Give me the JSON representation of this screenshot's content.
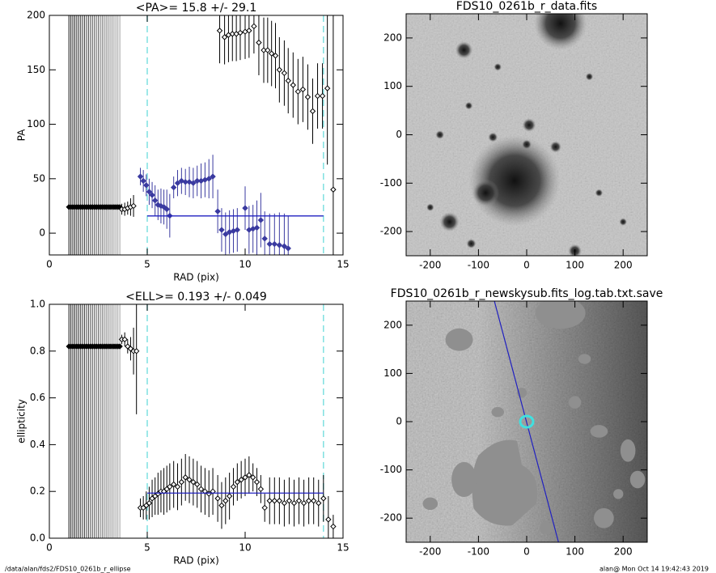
{
  "chart_data": [
    {
      "type": "scatter",
      "title": "<PA>=  15.8 +/-  29.1",
      "xlabel": "RAD (pix)",
      "ylabel": "PA",
      "xlim": [
        0,
        15
      ],
      "ylim": [
        -20,
        200
      ],
      "xticks": [
        0,
        5,
        10,
        15
      ],
      "yticks": [
        0,
        50,
        100,
        150,
        200
      ],
      "fit": {
        "value": 15.8,
        "color": "#2020c0"
      },
      "fit_range": [
        5,
        14
      ],
      "marker_color": "#7fe0e0",
      "series": [
        {
          "color": "#000000",
          "style": "band",
          "x": [
            1.0,
            1.1,
            1.2,
            1.3,
            1.4,
            1.5,
            1.6,
            1.7,
            1.8,
            1.9,
            2.0,
            2.1,
            2.2,
            2.3,
            2.4,
            2.5,
            2.6,
            2.7,
            2.8,
            2.9,
            3.0,
            3.1,
            3.2,
            3.3,
            3.4,
            3.5,
            3.6
          ],
          "values": [
            24,
            24,
            24,
            24,
            24,
            24,
            24,
            24,
            24,
            24,
            24,
            24,
            24,
            24,
            24,
            24,
            24,
            24,
            24,
            24,
            24,
            24,
            24,
            24,
            24,
            24,
            24
          ],
          "errors": [
            300,
            300,
            300,
            300,
            300,
            300,
            300,
            300,
            300,
            300,
            300,
            300,
            300,
            300,
            300,
            300,
            300,
            300,
            300,
            300,
            300,
            300,
            300,
            300,
            300,
            300,
            300
          ]
        },
        {
          "color": "#000000",
          "style": "open",
          "x": [
            3.7,
            3.85,
            4.0,
            4.15,
            4.3,
            8.7,
            8.95,
            9.15,
            9.35,
            9.55,
            9.75,
            10.0,
            10.2,
            10.45,
            10.7,
            10.95,
            11.15,
            11.35,
            11.55,
            11.75,
            12.0,
            12.2,
            12.45,
            12.7,
            12.95,
            13.2,
            13.45,
            13.7,
            13.95,
            14.2,
            14.5
          ],
          "values": [
            22,
            22,
            23,
            24,
            25,
            186,
            180,
            182,
            183,
            183,
            184,
            185,
            186,
            190,
            175,
            168,
            168,
            165,
            163,
            150,
            147,
            140,
            136,
            130,
            132,
            125,
            112,
            126,
            126,
            133,
            40
          ],
          "errors": [
            5,
            6,
            6,
            8,
            10,
            30,
            25,
            25,
            25,
            25,
            25,
            25,
            25,
            25,
            30,
            30,
            30,
            30,
            30,
            30,
            30,
            30,
            30,
            30,
            30,
            30,
            30,
            30,
            30,
            70,
            200
          ]
        },
        {
          "color": "#3a3aa0",
          "style": "filled",
          "x": [
            4.65,
            4.8,
            4.95,
            5.1,
            5.25,
            5.4,
            5.55,
            5.7,
            5.85,
            6.0,
            6.15,
            6.35,
            6.55,
            6.75,
            6.95,
            7.15,
            7.35,
            7.55,
            7.75,
            7.95,
            8.15,
            8.35,
            8.6,
            8.8,
            9.0,
            9.2,
            9.4,
            9.6,
            10.0,
            10.2,
            10.4,
            10.6,
            10.8,
            11.0,
            11.25,
            11.5,
            11.75,
            12.0,
            12.2
          ],
          "values": [
            52,
            48,
            44,
            38,
            35,
            30,
            26,
            25,
            24,
            22,
            16,
            42,
            46,
            48,
            47,
            47,
            46,
            48,
            48,
            49,
            50,
            52,
            20,
            3,
            -1,
            1,
            2,
            3,
            23,
            3,
            4,
            5,
            12,
            -5,
            -10,
            -10,
            -11,
            -12,
            -14
          ],
          "errors": [
            8,
            10,
            10,
            12,
            12,
            14,
            14,
            16,
            16,
            18,
            20,
            10,
            12,
            12,
            12,
            14,
            14,
            14,
            16,
            16,
            18,
            20,
            20,
            20,
            20,
            20,
            20,
            20,
            20,
            22,
            22,
            25,
            25,
            25,
            28,
            28,
            30,
            30,
            30
          ]
        }
      ]
    },
    {
      "type": "image",
      "title": "FDS10_0261b_r_data.fits",
      "xlim": [
        -250,
        250
      ],
      "ylim": [
        -250,
        250
      ],
      "xticks": [
        -200,
        -100,
        0,
        100,
        200
      ],
      "yticks": [
        -200,
        -100,
        0,
        100,
        200
      ],
      "style": "data"
    },
    {
      "type": "scatter",
      "title": "<ELL>= 0.193 +/-  0.049",
      "xlabel": "RAD (pix)",
      "ylabel": "ellipticity",
      "xlim": [
        0,
        15
      ],
      "ylim": [
        0,
        1
      ],
      "xticks": [
        0,
        5,
        10,
        15
      ],
      "yticks": [
        {
          "value": 0,
          "label": "0.0"
        },
        {
          "value": 0.2,
          "label": "0.2"
        },
        {
          "value": 0.4,
          "label": "0.4"
        },
        {
          "value": 0.6,
          "label": "0.6"
        },
        {
          "value": 0.8,
          "label": "0.8"
        },
        {
          "value": 1,
          "label": "1.0"
        }
      ],
      "fit": {
        "value": 0.193,
        "color": "#2020c0"
      },
      "fit_range": [
        5,
        14
      ],
      "marker_color": "#7fe0e0",
      "series": [
        {
          "color": "#000000",
          "style": "band",
          "x": [
            1.0,
            1.1,
            1.2,
            1.3,
            1.4,
            1.5,
            1.6,
            1.7,
            1.8,
            1.9,
            2.0,
            2.1,
            2.2,
            2.3,
            2.4,
            2.5,
            2.6,
            2.7,
            2.8,
            2.9,
            3.0,
            3.1,
            3.2,
            3.3,
            3.4,
            3.5,
            3.6
          ],
          "values": [
            0.82,
            0.82,
            0.82,
            0.82,
            0.82,
            0.82,
            0.82,
            0.82,
            0.82,
            0.82,
            0.82,
            0.82,
            0.82,
            0.82,
            0.82,
            0.82,
            0.82,
            0.82,
            0.82,
            0.82,
            0.82,
            0.82,
            0.82,
            0.82,
            0.82,
            0.82,
            0.82
          ],
          "errors": [
            1,
            1,
            1,
            1,
            1,
            1,
            1,
            1,
            1,
            1,
            1,
            1,
            1,
            1,
            1,
            1,
            1,
            1,
            1,
            1,
            1,
            1,
            1,
            1,
            1,
            1,
            1
          ]
        },
        {
          "color": "#000000",
          "style": "open",
          "x": [
            3.7,
            3.85,
            4.0,
            4.15,
            4.3,
            4.45,
            4.65,
            4.8,
            4.95,
            5.1,
            5.25,
            5.4,
            5.55,
            5.7,
            5.85,
            6.0,
            6.15,
            6.35,
            6.55,
            6.75,
            6.95,
            7.15,
            7.35,
            7.55,
            7.75,
            7.95,
            8.15,
            8.35,
            8.6,
            8.8,
            9.0,
            9.2,
            9.4,
            9.6,
            9.8,
            10.0,
            10.2,
            10.4,
            10.6,
            10.8,
            11.0,
            11.25,
            11.5,
            11.75,
            12.0,
            12.25,
            12.5,
            12.75,
            13.0,
            13.25,
            13.5,
            13.75,
            14.0,
            14.25,
            14.5
          ],
          "values": [
            0.85,
            0.85,
            0.82,
            0.81,
            0.8,
            0.8,
            0.13,
            0.13,
            0.14,
            0.15,
            0.17,
            0.18,
            0.19,
            0.2,
            0.2,
            0.21,
            0.22,
            0.23,
            0.22,
            0.24,
            0.26,
            0.25,
            0.24,
            0.23,
            0.21,
            0.2,
            0.19,
            0.2,
            0.17,
            0.14,
            0.16,
            0.18,
            0.22,
            0.24,
            0.25,
            0.26,
            0.27,
            0.26,
            0.24,
            0.21,
            0.13,
            0.16,
            0.16,
            0.16,
            0.15,
            0.16,
            0.15,
            0.16,
            0.15,
            0.16,
            0.16,
            0.15,
            0.17,
            0.08,
            0.05
          ],
          "errors": [
            0.02,
            0.03,
            0.03,
            0.05,
            0.1,
            0.27,
            0.04,
            0.05,
            0.06,
            0.07,
            0.08,
            0.08,
            0.09,
            0.09,
            0.1,
            0.1,
            0.1,
            0.1,
            0.1,
            0.1,
            0.1,
            0.1,
            0.1,
            0.1,
            0.1,
            0.1,
            0.1,
            0.1,
            0.1,
            0.1,
            0.1,
            0.1,
            0.08,
            0.08,
            0.08,
            0.08,
            0.08,
            0.06,
            0.06,
            0.06,
            0.06,
            0.1,
            0.1,
            0.1,
            0.1,
            0.1,
            0.1,
            0.1,
            0.1,
            0.1,
            0.1,
            0.1,
            0.1,
            0.1,
            0.05
          ]
        }
      ]
    },
    {
      "type": "image",
      "title": "FDS10_0261b_r_newskysub.fits_log.tab.txt.save",
      "xlim": [
        -250,
        250
      ],
      "ylim": [
        -250,
        250
      ],
      "xticks": [
        -200,
        -100,
        0,
        100,
        200
      ],
      "yticks": [
        -200,
        -100,
        0,
        100,
        200
      ],
      "style": "masked",
      "overlay_line": {
        "x": [
          -67,
          66
        ],
        "y": [
          250,
          -250
        ],
        "color": "#2020c0"
      },
      "aperture": {
        "x": 0,
        "y": 0,
        "color": "#40e0e0"
      }
    }
  ],
  "footer": {
    "left": "/data/alan/fds2/FDS10_0261b_r_ellipse",
    "right": "alan@  Mon Oct 14 19:42:43 2019"
  }
}
